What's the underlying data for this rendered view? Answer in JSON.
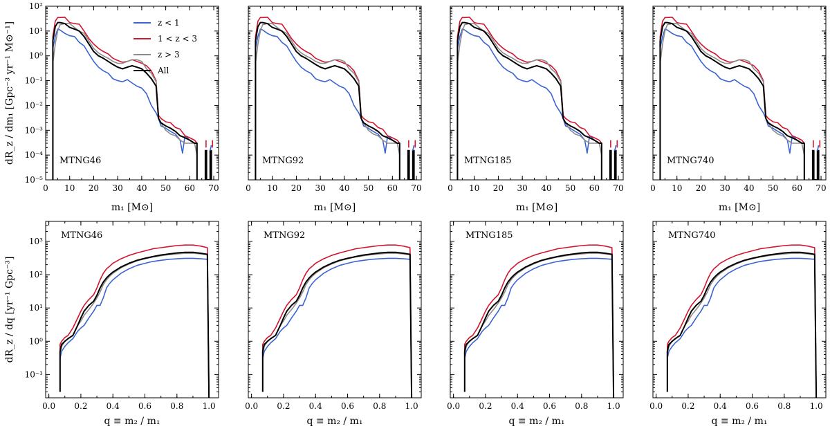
{
  "colors": {
    "z_lt_1": "#3b63d1",
    "z_1_3": "#d2152f",
    "z_gt_3": "#8c8c8c",
    "all": "#000000"
  },
  "legend": {
    "placement": "upper-right of first top panel",
    "entries": [
      "z < 1",
      "1 < z < 3",
      "z > 3",
      "All"
    ]
  },
  "panels": [
    "MTNG46",
    "MTNG92",
    "MTNG185",
    "MTNG740"
  ],
  "chart_data": [
    {
      "type": "line",
      "row": "top",
      "xlabel": "m₁ [M⊙]",
      "ylabel": "dR_z / dm₁ [Gpc⁻³ yr⁻¹ M⊙⁻¹]",
      "xlim": [
        0,
        72
      ],
      "ylim": [
        1e-05,
        100
      ],
      "yscale": "log",
      "xticks": [
        "0",
        "10",
        "20",
        "30",
        "40",
        "50",
        "60",
        "70"
      ],
      "yticks": [
        "10⁻⁵",
        "10⁻⁴",
        "10⁻³",
        "10⁻²",
        "10⁻¹",
        "10⁰",
        "10¹",
        "10²"
      ],
      "series": [
        {
          "name": "z < 1",
          "x": [
            3,
            3,
            4,
            5,
            6,
            8,
            10,
            12,
            14,
            16,
            18,
            20,
            22,
            24,
            26,
            28,
            30,
            32,
            34,
            36,
            38,
            40,
            42,
            44,
            46,
            47,
            48,
            50,
            52,
            54,
            56,
            57,
            58,
            60,
            62,
            63,
            63
          ],
          "y": [
            1e-05,
            2,
            6,
            12,
            11,
            8,
            6.5,
            6,
            3.5,
            2.5,
            1.2,
            0.6,
            0.35,
            0.25,
            0.2,
            0.12,
            0.1,
            0.09,
            0.11,
            0.08,
            0.06,
            0.05,
            0.03,
            0.01,
            0.005,
            0.003,
            0.0015,
            0.0012,
            0.0009,
            0.0007,
            0.0004,
            0.00012,
            0.0006,
            0.0004,
            0.0003,
            0.0003,
            1e-05
          ]
        },
        {
          "name": "1 < z < 3",
          "x": [
            3,
            3,
            4,
            5,
            6,
            8,
            10,
            12,
            14,
            16,
            18,
            20,
            22,
            24,
            26,
            28,
            30,
            32,
            34,
            36,
            38,
            40,
            42,
            44,
            46,
            47,
            48,
            50,
            52,
            54,
            56,
            58,
            60,
            62,
            63,
            63
          ],
          "y": [
            1e-05,
            6,
            25,
            35,
            35,
            36,
            22,
            20,
            19,
            10,
            5,
            3,
            2,
            1.5,
            1.2,
            0.8,
            0.65,
            0.55,
            0.6,
            0.7,
            0.6,
            0.5,
            0.4,
            0.25,
            0.1,
            0.004,
            0.003,
            0.0022,
            0.002,
            0.0013,
            0.0011,
            0.0006,
            0.0005,
            0.0004,
            0.0003,
            1e-05
          ]
        },
        {
          "name": "z > 3",
          "x": [
            3,
            3,
            4,
            5,
            6,
            8,
            10,
            12,
            14,
            16,
            18,
            20,
            22,
            24,
            26,
            28,
            30,
            32,
            34,
            36,
            38,
            40,
            42,
            44,
            46,
            47,
            48,
            50,
            52,
            54,
            56,
            58,
            60,
            62,
            63,
            63
          ],
          "y": [
            1e-05,
            0.5,
            3,
            10,
            18,
            20,
            20,
            14,
            10,
            8,
            4,
            2,
            1.3,
            1,
            0.8,
            0.6,
            0.5,
            0.5,
            0.6,
            0.7,
            0.7,
            0.6,
            0.3,
            0.2,
            0.09,
            0.003,
            0.002,
            0.001,
            0.0007,
            0.0006,
            0.0004,
            0.0003,
            0.0003,
            0.0003,
            0.0001,
            1e-05
          ]
        },
        {
          "name": "All",
          "x": [
            3,
            3,
            4,
            5,
            6,
            8,
            10,
            12,
            14,
            16,
            18,
            20,
            22,
            24,
            26,
            28,
            30,
            32,
            34,
            36,
            38,
            40,
            42,
            44,
            46,
            47,
            48,
            50,
            52,
            54,
            56,
            58,
            60,
            62,
            63,
            63
          ],
          "y": [
            1e-05,
            4,
            15,
            22,
            22,
            20,
            14,
            12,
            10,
            6,
            3,
            1.5,
            1,
            0.8,
            0.6,
            0.45,
            0.35,
            0.3,
            0.35,
            0.4,
            0.35,
            0.3,
            0.2,
            0.12,
            0.06,
            0.003,
            0.002,
            0.0015,
            0.0012,
            0.0009,
            0.0006,
            0.0005,
            0.0004,
            0.0003,
            0.0003,
            1e-05
          ]
        }
      ],
      "high_mass_spikes": [
        {
          "series": "All",
          "x": [
            66.5,
            66.5,
            67,
            67,
            68.5,
            68.5,
            69,
            69
          ],
          "y": [
            1e-05,
            0.00015,
            0.00015,
            1e-05,
            1e-05,
            0.00015,
            0.00015,
            1e-05
          ]
        },
        {
          "series": "z < 1",
          "x": [
            68.5,
            69
          ],
          "y": [
            0.00015,
            0.00025
          ]
        },
        {
          "series": "1 < z < 3",
          "x": [
            66.8,
            66.8
          ],
          "y": [
            0.0002,
            0.0004
          ]
        },
        {
          "series": "1 < z < 3",
          "x": [
            69.5,
            69.5
          ],
          "y": [
            0.0002,
            0.0004
          ]
        }
      ]
    },
    {
      "type": "line",
      "row": "bottom",
      "xlabel": "q ≡ m₂ / m₁",
      "ylabel": "dR_z / dq [yr⁻¹ Gpc⁻³]",
      "xlim": [
        -0.02,
        1.06
      ],
      "ylim": [
        0.02,
        4000
      ],
      "yscale": "log",
      "xticks": [
        "0.0",
        "0.2",
        "0.4",
        "0.6",
        "0.8",
        "1.0"
      ],
      "yticks": [
        "10⁻¹",
        "10⁰",
        "10¹",
        "10²",
        "10³"
      ],
      "series": [
        {
          "name": "z < 1",
          "x": [
            0.07,
            0.07,
            0.08,
            0.1,
            0.12,
            0.15,
            0.18,
            0.2,
            0.22,
            0.25,
            0.28,
            0.3,
            0.32,
            0.34,
            0.36,
            0.38,
            0.4,
            0.45,
            0.5,
            0.55,
            0.6,
            0.65,
            0.7,
            0.75,
            0.8,
            0.85,
            0.9,
            0.95,
            0.99,
            1.0
          ],
          "y": [
            0.03,
            0.3,
            0.5,
            0.7,
            0.9,
            1.2,
            2,
            2.5,
            3,
            5,
            8,
            12,
            12,
            20,
            40,
            55,
            70,
            110,
            150,
            190,
            220,
            250,
            270,
            290,
            300,
            310,
            310,
            300,
            290,
            0.02
          ]
        },
        {
          "name": "1 < z < 3",
          "x": [
            0.07,
            0.07,
            0.08,
            0.1,
            0.12,
            0.15,
            0.18,
            0.2,
            0.22,
            0.25,
            0.28,
            0.3,
            0.32,
            0.34,
            0.36,
            0.38,
            0.4,
            0.45,
            0.5,
            0.55,
            0.6,
            0.65,
            0.7,
            0.75,
            0.8,
            0.85,
            0.9,
            0.95,
            0.99,
            1.0
          ],
          "y": [
            0.04,
            0.8,
            1.0,
            1.3,
            1.5,
            2.5,
            5,
            8,
            12,
            18,
            25,
            40,
            70,
            110,
            150,
            180,
            220,
            300,
            380,
            450,
            520,
            600,
            650,
            700,
            750,
            780,
            780,
            720,
            650,
            0.02
          ]
        },
        {
          "name": "z > 3",
          "x": [
            0.07,
            0.07,
            0.08,
            0.1,
            0.12,
            0.15,
            0.18,
            0.2,
            0.22,
            0.25,
            0.28,
            0.3,
            0.32,
            0.34,
            0.36,
            0.38,
            0.4,
            0.45,
            0.5,
            0.55,
            0.6,
            0.65,
            0.7,
            0.75,
            0.8,
            0.85,
            0.9,
            0.95,
            0.99,
            1.0
          ],
          "y": [
            0.03,
            0.4,
            0.7,
            1.0,
            1.2,
            1.5,
            3,
            4,
            6,
            9,
            14,
            20,
            30,
            50,
            70,
            90,
            110,
            160,
            210,
            260,
            300,
            340,
            370,
            400,
            420,
            440,
            440,
            420,
            400,
            0.02
          ]
        },
        {
          "name": "All",
          "x": [
            0.07,
            0.07,
            0.08,
            0.1,
            0.12,
            0.15,
            0.18,
            0.2,
            0.22,
            0.25,
            0.28,
            0.3,
            0.32,
            0.34,
            0.36,
            0.38,
            0.4,
            0.45,
            0.5,
            0.55,
            0.6,
            0.65,
            0.7,
            0.75,
            0.8,
            0.85,
            0.9,
            0.95,
            0.99,
            1.0
          ],
          "y": [
            0.03,
            0.5,
            0.8,
            1.0,
            1.2,
            1.5,
            3,
            5,
            8,
            12,
            16,
            24,
            40,
            60,
            80,
            100,
            120,
            170,
            220,
            270,
            310,
            350,
            390,
            420,
            450,
            470,
            470,
            440,
            410,
            0.02
          ]
        }
      ]
    }
  ]
}
